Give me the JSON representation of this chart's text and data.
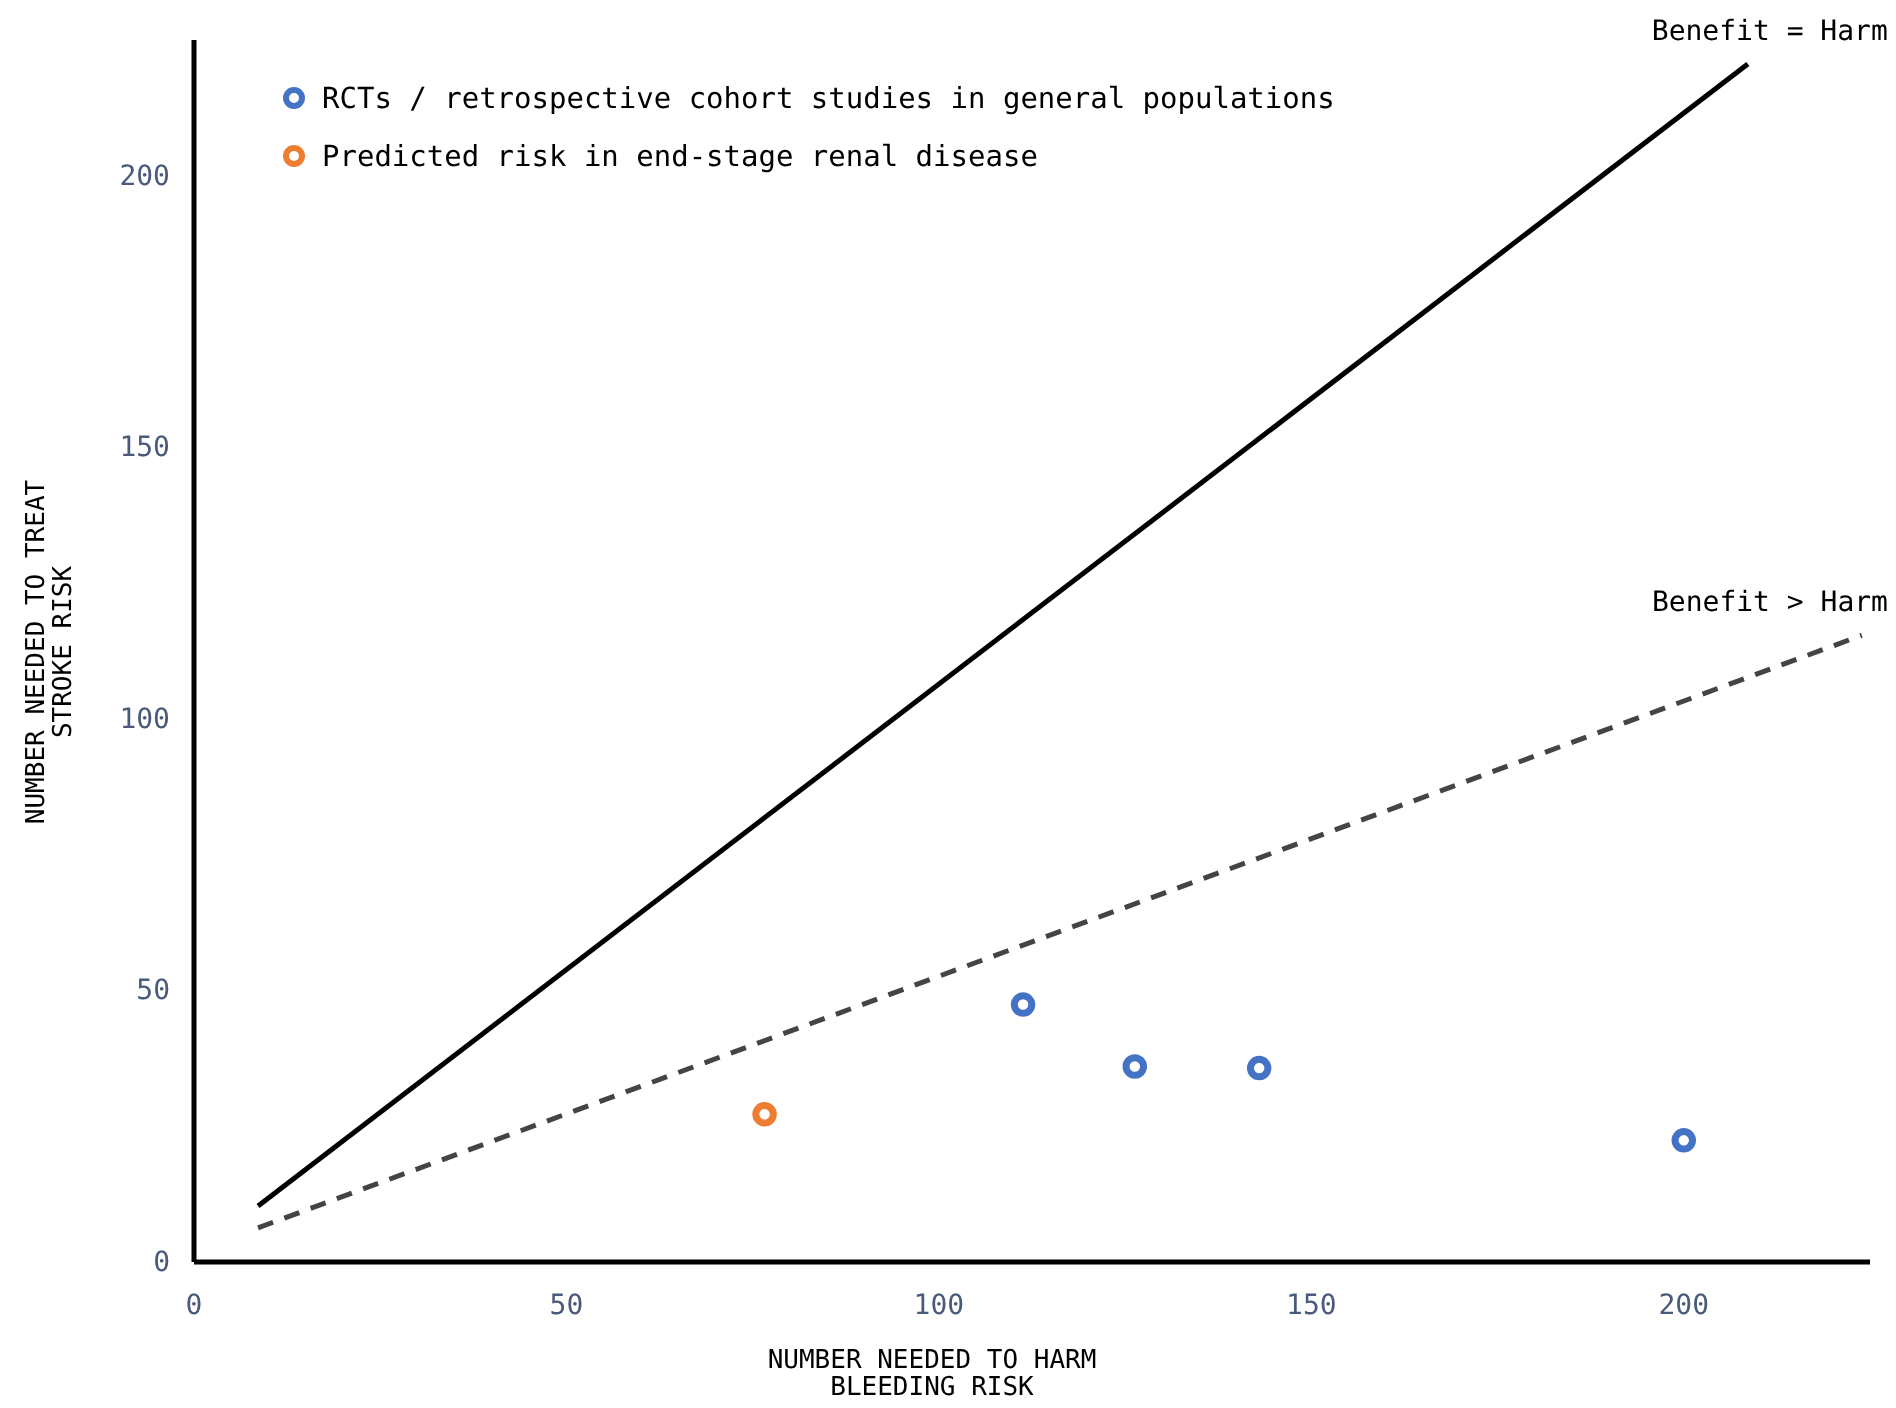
{
  "chart_data": {
    "type": "scatter",
    "xlabel": "NUMBER NEEDED TO HARM\nBLEEDING RISK",
    "ylabel": "NUMBER NEEDED TO TREAT\nSTROKE RISK",
    "xlim": [
      0,
      225
    ],
    "ylim": [
      0,
      225
    ],
    "xticks": [
      0,
      50,
      100,
      150,
      200
    ],
    "yticks": [
      0,
      50,
      100,
      150,
      200
    ],
    "grid": false,
    "legend": "top left",
    "marker": "circle",
    "series": [
      {
        "name": "RCTs / retrospective cohort studies in general populations",
        "color": "#4472c4",
        "x": [
          111.3,
          126.3,
          143,
          200
        ],
        "values": [
          47.4,
          36,
          35.7,
          22.4
        ]
      },
      {
        "name": "Predicted risk in end-stage renal disease",
        "color": "#ed7d31",
        "x": [
          76.6
        ],
        "values": [
          27.2
        ]
      },
      {
        "type": "line",
        "color": "#000000",
        "line_style": "solid",
        "marker": "none",
        "x": [
          8.6,
          208.6
        ],
        "values": [
          10.3,
          220.6
        ]
      },
      {
        "type": "line",
        "color": "#444444",
        "line_style": "dashed",
        "marker": "none",
        "x": [
          8.6,
          223.9
        ],
        "values": [
          6.3,
          115.4
        ]
      }
    ],
    "annotations": [
      {
        "text": "Benefit = Harm",
        "x": 208.6,
        "y": 220.6
      },
      {
        "text": "Benefit > Harm",
        "x": 223.9,
        "y": 115.4
      }
    ]
  }
}
